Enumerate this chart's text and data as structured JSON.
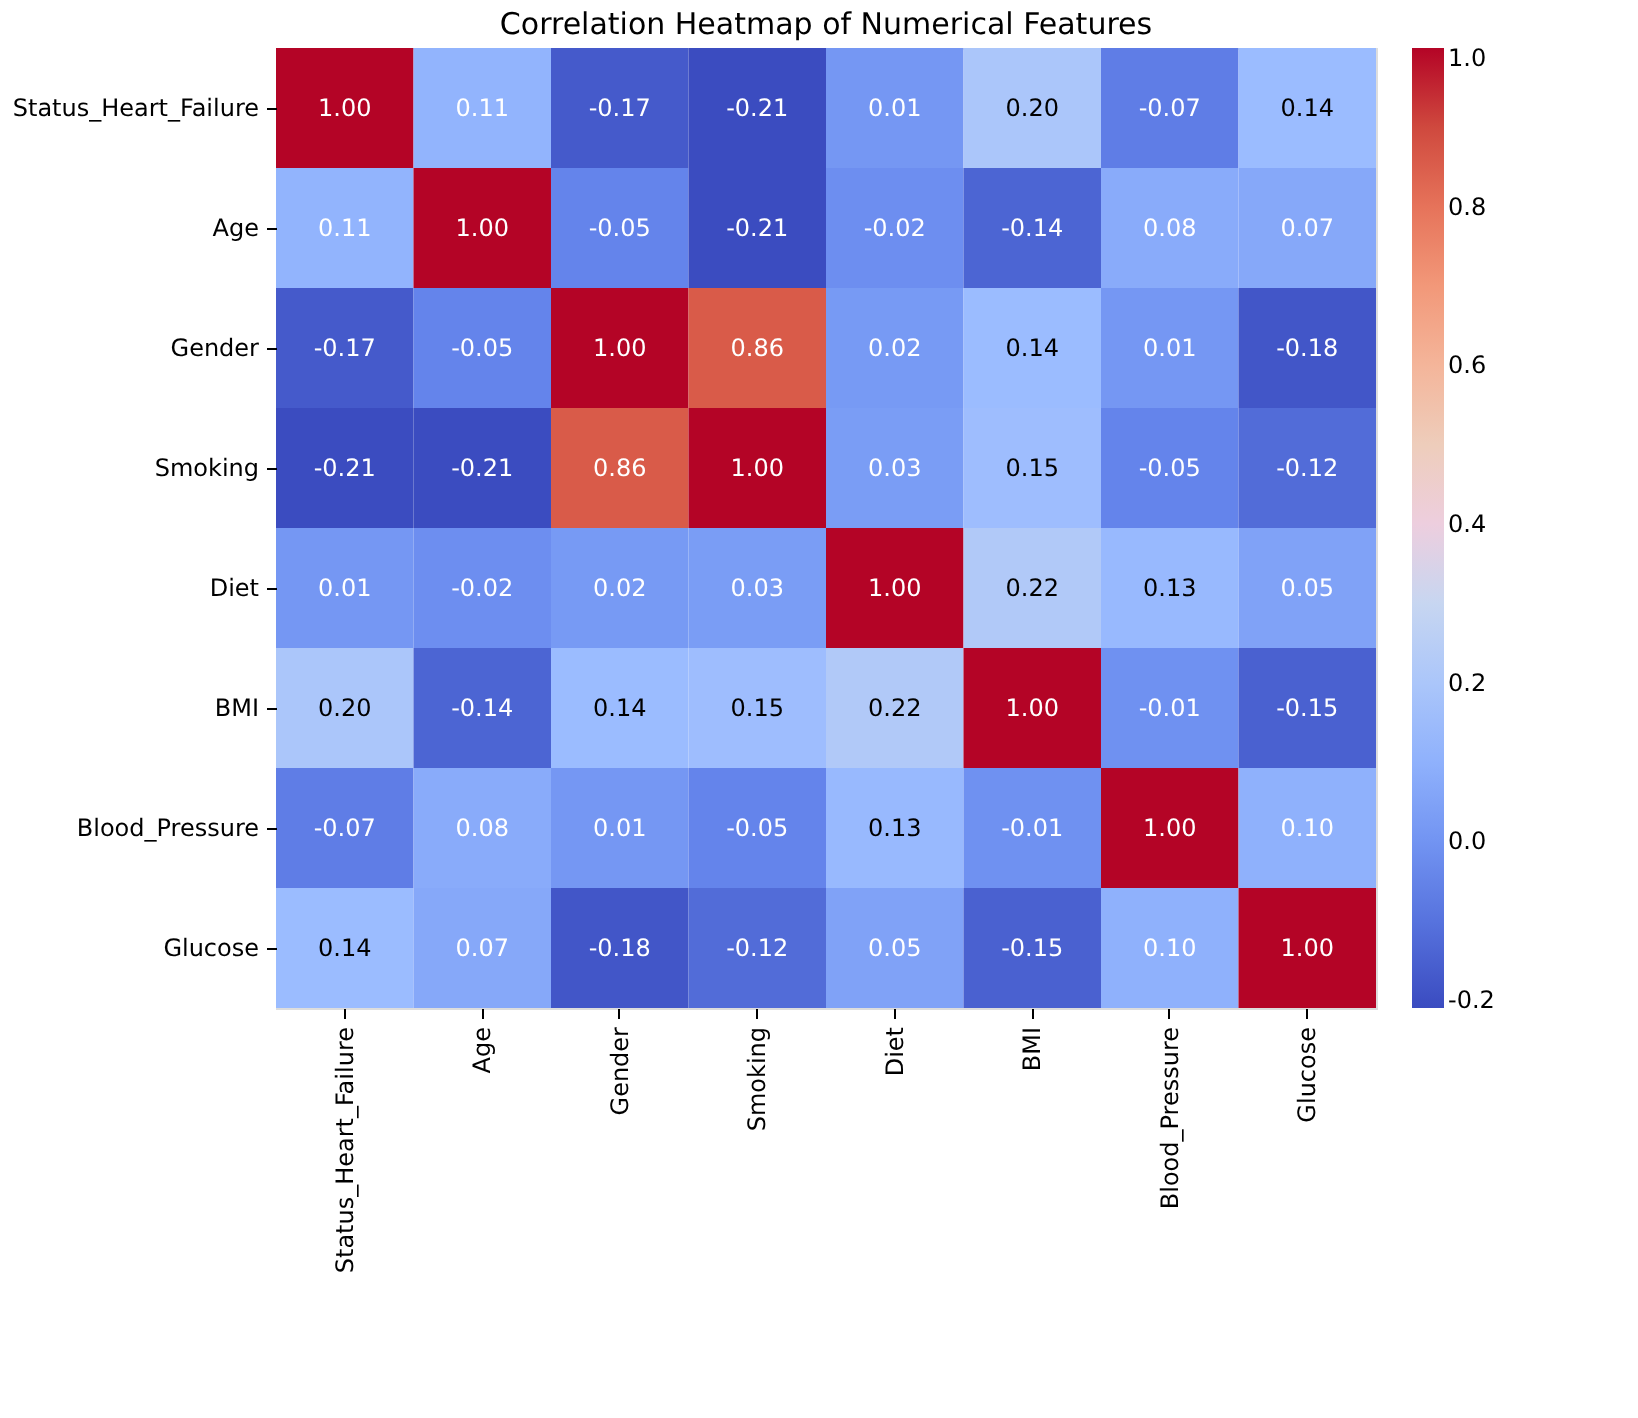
{
  "chart_data": {
    "type": "heatmap",
    "title": "Correlation Heatmap of Numerical Features",
    "categories": [
      "Status_Heart_Failure",
      "Age",
      "Gender",
      "Smoking",
      "Diet",
      "BMI",
      "Blood_Pressure",
      "Glucose"
    ],
    "y_categories": [
      "Status_Heart_Failure",
      "Age",
      "Gender",
      "Smoking",
      "Diet",
      "BMI",
      "Blood_Pressure",
      "Glucose"
    ],
    "cells": [
      [
        1.0,
        0.11,
        -0.17,
        -0.21,
        0.01,
        0.2,
        -0.07,
        0.14
      ],
      [
        0.11,
        1.0,
        -0.05,
        -0.21,
        -0.02,
        -0.14,
        0.08,
        0.07
      ],
      [
        -0.17,
        -0.05,
        1.0,
        0.86,
        0.02,
        0.14,
        0.01,
        -0.18
      ],
      [
        -0.21,
        -0.21,
        0.86,
        1.0,
        0.03,
        0.15,
        -0.05,
        -0.12
      ],
      [
        0.01,
        -0.02,
        0.02,
        0.03,
        1.0,
        0.22,
        0.13,
        0.05
      ],
      [
        0.2,
        -0.14,
        0.14,
        0.15,
        0.22,
        1.0,
        -0.01,
        -0.15
      ],
      [
        -0.07,
        0.08,
        0.01,
        -0.05,
        0.13,
        -0.01,
        1.0,
        0.1
      ],
      [
        0.14,
        0.07,
        -0.18,
        -0.12,
        0.05,
        -0.15,
        0.1,
        1.0
      ]
    ],
    "cell_labels": [
      [
        "1.00",
        "0.11",
        "-0.17",
        "-0.21",
        "0.01",
        "0.20",
        "-0.07",
        "0.14"
      ],
      [
        "0.11",
        "1.00",
        "-0.05",
        "-0.21",
        "-0.02",
        "-0.14",
        "0.08",
        "0.07"
      ],
      [
        "-0.17",
        "-0.05",
        "1.00",
        "0.86",
        "0.02",
        "0.14",
        "0.01",
        "-0.18"
      ],
      [
        "-0.21",
        "-0.21",
        "0.86",
        "1.00",
        "0.03",
        "0.15",
        "-0.05",
        "-0.12"
      ],
      [
        "0.01",
        "-0.02",
        "0.02",
        "0.03",
        "1.00",
        "0.22",
        "0.13",
        "0.05"
      ],
      [
        "0.20",
        "-0.14",
        "0.14",
        "0.15",
        "0.22",
        "1.00",
        "-0.01",
        "-0.15"
      ],
      [
        "-0.07",
        "0.08",
        "0.01",
        "-0.05",
        "0.13",
        "-0.01",
        "1.00",
        "0.10"
      ],
      [
        "0.14",
        "0.07",
        "-0.18",
        "-0.12",
        "0.05",
        "-0.15",
        "0.10",
        "1.00"
      ]
    ],
    "clim": [
      -0.21,
      1.0
    ],
    "cticks": [
      {
        "value": -0.2,
        "label": "-0.2"
      },
      {
        "value": 0,
        "label": "0.0"
      },
      {
        "value": 0.2,
        "label": "0.2"
      },
      {
        "value": 0.4,
        "label": "0.4"
      },
      {
        "value": 0.6,
        "label": "0.6"
      },
      {
        "value": 0.8,
        "label": "0.8"
      },
      {
        "value": 1.0,
        "label": "1.0"
      }
    ]
  }
}
